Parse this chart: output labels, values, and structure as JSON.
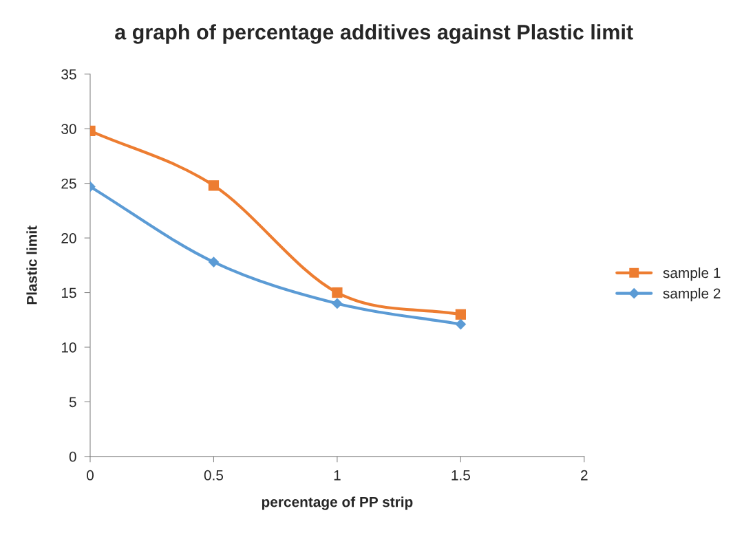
{
  "chart_data": {
    "type": "line",
    "title": "a graph of percentage additives against Plastic limit",
    "xlabel": "percentage of PP strip",
    "ylabel": "Plastic limit",
    "x": [
      0,
      0.5,
      1,
      1.5
    ],
    "series": [
      {
        "name": "sample 1",
        "color": "#ed7d31",
        "marker": "square",
        "values": [
          29.8,
          24.8,
          15.0,
          13.0
        ]
      },
      {
        "name": "sample 2",
        "color": "#5b9bd5",
        "marker": "diamond",
        "values": [
          24.7,
          17.8,
          14.0,
          12.1
        ]
      }
    ],
    "xlim": [
      0,
      2
    ],
    "xticks": [
      0,
      0.5,
      1,
      1.5,
      2
    ],
    "ylim": [
      0,
      35
    ],
    "yticks": [
      0,
      5,
      10,
      15,
      20,
      25,
      30,
      35
    ],
    "grid": false,
    "legend": "right",
    "line_style": "solid"
  }
}
